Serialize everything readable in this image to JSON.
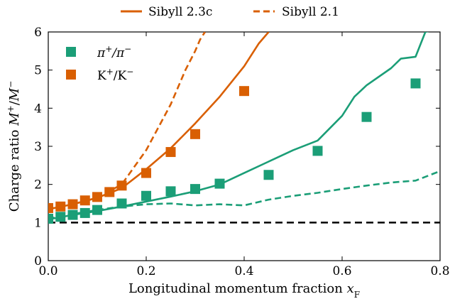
{
  "chart_data": {
    "type": "line",
    "xlabel": "Longitudinal momentum fraction x_F",
    "xlabel_main": "Longitudinal momentum fraction ",
    "xlabel_var": "x",
    "xlabel_sub": "F",
    "ylabel": "Charge ratio M+/M−",
    "ylabel_main": "Charge ratio ",
    "xlim": [
      0.0,
      0.8
    ],
    "ylim": [
      0,
      6
    ],
    "x_ticks": [
      0.0,
      0.2,
      0.4,
      0.6,
      0.8
    ],
    "x_tick_labels": [
      "0.0",
      "0.2",
      "0.4",
      "0.6",
      "0.8"
    ],
    "y_ticks": [
      0,
      1,
      2,
      3,
      4,
      5,
      6
    ],
    "y_tick_labels": [
      "0",
      "1",
      "2",
      "3",
      "4",
      "5",
      "6"
    ],
    "legend_top": [
      {
        "label": "Sibyll 2.3c",
        "style": "solid"
      },
      {
        "label": "Sibyll 2.1",
        "style": "dashed"
      }
    ],
    "legend_inner": [
      {
        "label": "π+/π−",
        "base": "π",
        "sup1": "+",
        "mid": "/π",
        "sup2": "−",
        "color": "#1b9e77"
      },
      {
        "label": "K+/K−",
        "base": "K",
        "sup1": "+",
        "mid": "/K",
        "sup2": "−",
        "color": "#d95f02"
      }
    ],
    "reference_line": {
      "y": 1.0,
      "style": "dashed",
      "color": "#000000"
    },
    "series": [
      {
        "particle": "pion",
        "model": "Sibyll 2.3c",
        "kind": "line",
        "style": "solid",
        "color": "#1b9e77",
        "x": [
          0.0,
          0.05,
          0.1,
          0.15,
          0.2,
          0.25,
          0.3,
          0.35,
          0.4,
          0.45,
          0.5,
          0.55,
          0.6,
          0.625,
          0.65,
          0.7,
          0.72,
          0.75,
          0.77,
          0.8
        ],
        "y": [
          1.08,
          1.2,
          1.3,
          1.42,
          1.55,
          1.68,
          1.82,
          2.0,
          2.3,
          2.6,
          2.9,
          3.15,
          3.8,
          4.3,
          4.6,
          5.05,
          5.3,
          5.35,
          6.0,
          6.1
        ]
      },
      {
        "particle": "pion",
        "model": "Sibyll 2.1",
        "kind": "line",
        "style": "dashed",
        "color": "#1b9e77",
        "x": [
          0.0,
          0.05,
          0.1,
          0.15,
          0.2,
          0.25,
          0.3,
          0.35,
          0.4,
          0.45,
          0.5,
          0.55,
          0.6,
          0.65,
          0.7,
          0.75,
          0.8
        ],
        "y": [
          1.1,
          1.22,
          1.33,
          1.42,
          1.48,
          1.5,
          1.45,
          1.48,
          1.45,
          1.6,
          1.7,
          1.78,
          1.88,
          1.97,
          2.05,
          2.1,
          2.35
        ]
      },
      {
        "particle": "kaon",
        "model": "Sibyll 2.3c",
        "kind": "line",
        "style": "solid",
        "color": "#d95f02",
        "x": [
          0.0,
          0.05,
          0.1,
          0.15,
          0.2,
          0.25,
          0.3,
          0.35,
          0.4,
          0.43,
          0.45
        ],
        "y": [
          1.35,
          1.48,
          1.65,
          1.9,
          2.4,
          2.95,
          3.6,
          4.3,
          5.1,
          5.7,
          6.0
        ]
      },
      {
        "particle": "kaon",
        "model": "Sibyll 2.1",
        "kind": "line",
        "style": "dashed",
        "color": "#d95f02",
        "x": [
          0.0,
          0.05,
          0.1,
          0.15,
          0.2,
          0.25,
          0.28,
          0.3,
          0.31,
          0.32
        ],
        "y": [
          1.35,
          1.48,
          1.65,
          2.0,
          2.9,
          4.1,
          5.0,
          5.5,
          5.8,
          6.0
        ]
      },
      {
        "particle": "pion",
        "model": "data",
        "kind": "scatter",
        "color": "#1b9e77",
        "x": [
          0.0,
          0.025,
          0.05,
          0.075,
          0.1,
          0.15,
          0.2,
          0.25,
          0.3,
          0.35,
          0.45,
          0.55,
          0.65,
          0.75
        ],
        "y": [
          1.1,
          1.15,
          1.2,
          1.25,
          1.33,
          1.5,
          1.7,
          1.82,
          1.88,
          2.02,
          2.25,
          2.88,
          3.77,
          4.65
        ]
      },
      {
        "particle": "kaon",
        "model": "data",
        "kind": "scatter",
        "color": "#d95f02",
        "x": [
          0.0,
          0.025,
          0.05,
          0.075,
          0.1,
          0.125,
          0.15,
          0.2,
          0.25,
          0.3,
          0.4
        ],
        "y": [
          1.38,
          1.42,
          1.48,
          1.58,
          1.67,
          1.8,
          1.97,
          2.3,
          2.85,
          3.32,
          4.45
        ]
      }
    ]
  }
}
